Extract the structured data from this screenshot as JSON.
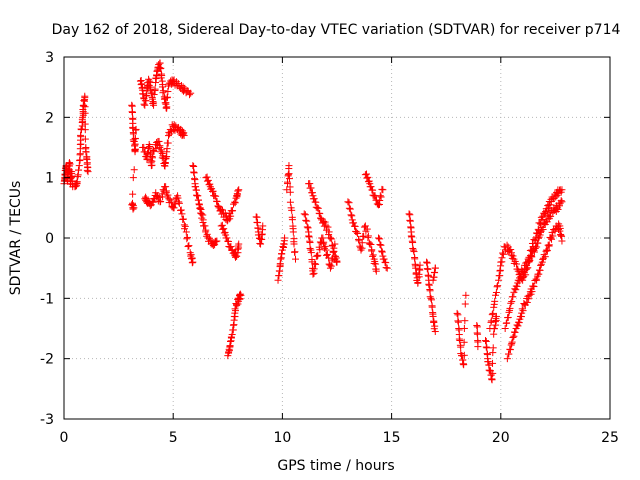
{
  "chart_data": {
    "type": "scatter",
    "title": "Day 162 of 2018, Sidereal Day-to-day VTEC variation (SDTVAR) for receiver p714",
    "xlabel": "GPS time / hours",
    "ylabel": "SDTVAR / TECUs",
    "xlim": [
      0,
      25
    ],
    "ylim": [
      -3,
      3
    ],
    "xticks": [
      0,
      5,
      10,
      15,
      20,
      25
    ],
    "yticks": [
      -3,
      -2,
      -1,
      0,
      1,
      2,
      3
    ],
    "xtick_labels": [
      "0",
      "5",
      "10",
      "15",
      "20",
      "25"
    ],
    "ytick_labels": [
      "-3",
      "-2",
      "-1",
      "0",
      "1",
      "2",
      "3"
    ],
    "grid": true,
    "marker": "plus",
    "color": "#ff0000",
    "series": [
      {
        "name": "SDTVAR p714",
        "segments": [
          [
            [
              0.0,
              0.9
            ],
            [
              0.05,
              1.05
            ],
            [
              0.1,
              1.2
            ],
            [
              0.15,
              0.95
            ],
            [
              0.2,
              1.1
            ],
            [
              0.25,
              1.25
            ],
            [
              0.3,
              0.9
            ],
            [
              0.35,
              1.1
            ],
            [
              0.4,
              0.85
            ]
          ],
          [
            [
              0.5,
              0.85
            ],
            [
              0.6,
              0.9
            ],
            [
              0.7,
              1.2
            ],
            [
              0.75,
              1.55
            ],
            [
              0.8,
              1.8
            ],
            [
              0.85,
              2.0
            ],
            [
              0.9,
              2.2
            ],
            [
              0.95,
              2.35
            ],
            [
              1.0,
              1.5
            ],
            [
              1.05,
              1.3
            ],
            [
              1.1,
              1.1
            ]
          ],
          [
            [
              3.1,
              2.2
            ],
            [
              3.15,
              1.9
            ],
            [
              3.2,
              1.6
            ],
            [
              3.25,
              1.45
            ],
            [
              3.3,
              1.8
            ],
            [
              3.1,
              0.55
            ],
            [
              3.2,
              0.5
            ]
          ],
          [
            [
              3.5,
              2.6
            ],
            [
              3.6,
              2.45
            ],
            [
              3.7,
              2.2
            ],
            [
              3.8,
              2.5
            ],
            [
              3.9,
              2.6
            ],
            [
              4.0,
              2.4
            ],
            [
              4.1,
              2.2
            ],
            [
              4.2,
              2.65
            ],
            [
              4.3,
              2.8
            ],
            [
              4.4,
              2.9
            ],
            [
              4.5,
              2.6
            ],
            [
              4.6,
              2.3
            ],
            [
              4.7,
              2.15
            ],
            [
              4.8,
              2.55
            ],
            [
              5.0,
              2.6
            ],
            [
              5.3,
              2.5
            ],
            [
              5.5,
              2.45
            ],
            [
              5.8,
              2.4
            ]
          ],
          [
            [
              3.6,
              1.5
            ],
            [
              3.8,
              1.3
            ],
            [
              3.9,
              1.55
            ],
            [
              4.0,
              1.2
            ],
            [
              4.1,
              1.45
            ],
            [
              4.3,
              1.6
            ],
            [
              4.5,
              1.4
            ],
            [
              4.6,
              1.2
            ],
            [
              4.7,
              1.35
            ],
            [
              4.8,
              1.75
            ],
            [
              5.0,
              1.85
            ],
            [
              5.2,
              1.8
            ],
            [
              5.4,
              1.75
            ],
            [
              5.5,
              1.7
            ]
          ],
          [
            [
              3.7,
              0.65
            ],
            [
              3.8,
              0.6
            ],
            [
              4.0,
              0.55
            ],
            [
              4.2,
              0.75
            ],
            [
              4.4,
              0.6
            ],
            [
              4.6,
              0.85
            ],
            [
              4.8,
              0.65
            ],
            [
              5.0,
              0.5
            ],
            [
              5.2,
              0.7
            ],
            [
              5.4,
              0.4
            ],
            [
              5.6,
              0.1
            ],
            [
              5.8,
              -0.3
            ],
            [
              5.9,
              -0.4
            ]
          ],
          [
            [
              5.9,
              1.2
            ],
            [
              6.0,
              0.9
            ],
            [
              6.1,
              0.7
            ],
            [
              6.2,
              0.55
            ],
            [
              6.3,
              0.4
            ],
            [
              6.4,
              0.2
            ],
            [
              6.6,
              0.0
            ],
            [
              6.8,
              -0.1
            ],
            [
              7.0,
              -0.05
            ]
          ],
          [
            [
              6.5,
              1.0
            ],
            [
              6.7,
              0.85
            ],
            [
              6.9,
              0.7
            ],
            [
              7.1,
              0.5
            ],
            [
              7.3,
              0.4
            ],
            [
              7.5,
              0.3
            ],
            [
              7.7,
              0.45
            ],
            [
              7.9,
              0.7
            ],
            [
              8.0,
              0.8
            ]
          ],
          [
            [
              7.2,
              0.2
            ],
            [
              7.4,
              0.05
            ],
            [
              7.6,
              -0.15
            ],
            [
              7.8,
              -0.25
            ],
            [
              7.9,
              -0.3
            ],
            [
              8.0,
              -0.1
            ]
          ],
          [
            [
              7.5,
              -1.95
            ],
            [
              7.6,
              -1.8
            ],
            [
              7.7,
              -1.6
            ],
            [
              7.8,
              -1.3
            ],
            [
              7.9,
              -1.1
            ],
            [
              8.0,
              -1.0
            ],
            [
              8.1,
              -0.95
            ]
          ],
          [
            [
              8.8,
              0.35
            ],
            [
              8.9,
              0.1
            ],
            [
              9.0,
              -0.1
            ],
            [
              9.1,
              0.2
            ]
          ],
          [
            [
              9.8,
              -0.7
            ],
            [
              9.9,
              -0.45
            ],
            [
              10.0,
              -0.2
            ],
            [
              10.1,
              0.0
            ]
          ],
          [
            [
              10.2,
              0.8
            ],
            [
              10.3,
              1.2
            ],
            [
              10.4,
              0.5
            ],
            [
              10.5,
              0.1
            ],
            [
              10.6,
              -0.35
            ]
          ],
          [
            [
              11.0,
              0.4
            ],
            [
              11.2,
              0.1
            ],
            [
              11.3,
              -0.2
            ],
            [
              11.4,
              -0.6
            ],
            [
              11.6,
              -0.3
            ],
            [
              11.8,
              0.0
            ],
            [
              12.0,
              -0.2
            ],
            [
              12.2,
              -0.5
            ],
            [
              12.4,
              -0.1
            ]
          ],
          [
            [
              11.2,
              0.9
            ],
            [
              11.4,
              0.7
            ],
            [
              11.6,
              0.5
            ],
            [
              11.8,
              0.3
            ],
            [
              12.0,
              0.2
            ],
            [
              12.2,
              0.0
            ],
            [
              12.4,
              -0.3
            ],
            [
              12.5,
              -0.4
            ]
          ],
          [
            [
              13.0,
              0.6
            ],
            [
              13.2,
              0.3
            ],
            [
              13.4,
              0.1
            ],
            [
              13.6,
              -0.2
            ],
            [
              13.8,
              0.2
            ],
            [
              14.0,
              -0.1
            ],
            [
              14.2,
              -0.35
            ],
            [
              14.3,
              -0.55
            ]
          ],
          [
            [
              13.8,
              1.05
            ],
            [
              14.0,
              0.9
            ],
            [
              14.2,
              0.7
            ],
            [
              14.4,
              0.55
            ],
            [
              14.6,
              0.8
            ]
          ],
          [
            [
              14.4,
              0.0
            ],
            [
              14.6,
              -0.3
            ],
            [
              14.8,
              -0.5
            ]
          ],
          [
            [
              15.8,
              0.4
            ],
            [
              15.9,
              0.1
            ],
            [
              16.0,
              -0.2
            ],
            [
              16.1,
              -0.5
            ],
            [
              16.2,
              -0.75
            ],
            [
              16.3,
              -0.45
            ]
          ],
          [
            [
              16.6,
              -0.4
            ],
            [
              16.7,
              -0.7
            ],
            [
              16.8,
              -1.0
            ],
            [
              16.9,
              -1.3
            ],
            [
              17.0,
              -1.55
            ]
          ],
          [
            [
              17.0,
              -0.5
            ],
            [
              16.9,
              -0.7
            ]
          ],
          [
            [
              18.0,
              -1.25
            ],
            [
              18.1,
              -1.6
            ],
            [
              18.2,
              -1.95
            ],
            [
              18.3,
              -2.1
            ],
            [
              18.4,
              -0.95
            ]
          ],
          [
            [
              18.9,
              -1.45
            ],
            [
              18.95,
              -1.8
            ]
          ],
          [
            [
              19.3,
              -1.7
            ],
            [
              19.4,
              -2.0
            ],
            [
              19.5,
              -2.2
            ],
            [
              19.6,
              -2.35
            ],
            [
              19.7,
              -1.5
            ],
            [
              19.8,
              -1.3
            ]
          ],
          [
            [
              19.5,
              -1.5
            ],
            [
              19.7,
              -1.1
            ],
            [
              19.9,
              -0.7
            ],
            [
              20.0,
              -0.4
            ],
            [
              20.2,
              -0.15
            ],
            [
              20.4,
              -0.2
            ],
            [
              20.6,
              -0.35
            ],
            [
              20.8,
              -0.55
            ],
            [
              21.0,
              -0.7
            ],
            [
              21.2,
              -0.5
            ],
            [
              21.4,
              -0.2
            ],
            [
              21.6,
              0.0
            ],
            [
              21.8,
              0.25
            ],
            [
              22.0,
              0.4
            ],
            [
              22.2,
              0.55
            ],
            [
              22.4,
              0.65
            ],
            [
              22.6,
              0.75
            ],
            [
              22.8,
              0.8
            ]
          ],
          [
            [
              20.2,
              -1.5
            ],
            [
              20.4,
              -1.2
            ],
            [
              20.6,
              -0.9
            ],
            [
              20.8,
              -0.7
            ],
            [
              21.0,
              -0.55
            ],
            [
              21.2,
              -0.4
            ],
            [
              21.4,
              -0.3
            ],
            [
              21.6,
              -0.15
            ],
            [
              21.8,
              0.05
            ],
            [
              22.0,
              0.25
            ],
            [
              22.2,
              0.35
            ],
            [
              22.4,
              0.45
            ],
            [
              22.6,
              0.5
            ],
            [
              22.8,
              0.6
            ]
          ],
          [
            [
              20.3,
              -2.0
            ],
            [
              20.5,
              -1.75
            ],
            [
              20.7,
              -1.5
            ],
            [
              20.9,
              -1.3
            ],
            [
              21.1,
              -1.1
            ],
            [
              21.3,
              -0.95
            ],
            [
              21.5,
              -0.8
            ],
            [
              21.7,
              -0.6
            ],
            [
              21.9,
              -0.4
            ],
            [
              22.1,
              -0.2
            ],
            [
              22.3,
              0.0
            ],
            [
              22.5,
              0.15
            ],
            [
              22.7,
              0.2
            ],
            [
              22.8,
              -0.05
            ]
          ]
        ]
      }
    ]
  }
}
